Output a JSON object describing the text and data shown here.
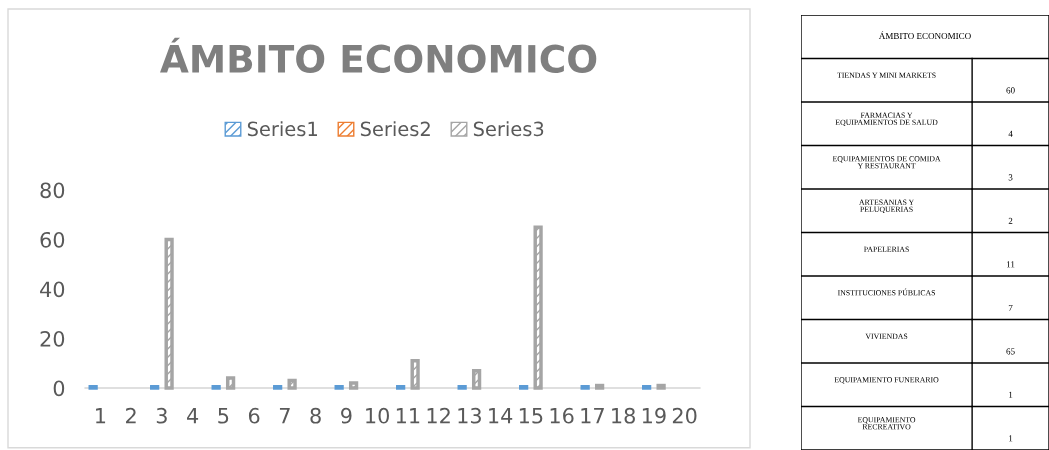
{
  "chart_data": [
    {
      "type": "bar",
      "title": "ÁMBITO ECONOMICO",
      "categories": [
        "1",
        "2",
        "3",
        "4",
        "5",
        "6",
        "7",
        "8",
        "9",
        "10",
        "11",
        "12",
        "13",
        "14",
        "15",
        "16",
        "17",
        "18",
        "19",
        "20"
      ],
      "series": [
        {
          "name": "Series1",
          "color": "#5b9bd5",
          "values": [
            0.5,
            null,
            0.5,
            null,
            0.5,
            null,
            0.5,
            null,
            0.5,
            null,
            0.5,
            null,
            0.5,
            null,
            0.5,
            null,
            0.5,
            null,
            0.5,
            null
          ]
        },
        {
          "name": "Series2",
          "color": "#ed7d31",
          "values": [
            null,
            null,
            null,
            null,
            null,
            null,
            null,
            null,
            null,
            null,
            null,
            null,
            null,
            null,
            null,
            null,
            null,
            null,
            null,
            null
          ]
        },
        {
          "name": "Series3",
          "color": "#a5a5a5",
          "values": [
            null,
            null,
            60,
            null,
            4,
            null,
            3,
            null,
            2,
            null,
            11,
            null,
            7,
            null,
            65,
            null,
            1,
            null,
            1,
            null
          ]
        }
      ],
      "ylim": [
        0,
        80
      ],
      "yticks": [
        0,
        20,
        40,
        60,
        80
      ],
      "grid": false,
      "legend": "top"
    },
    {
      "type": "other",
      "title": "ÁMBITO ECONOMICO",
      "categories": [
        "TIENDAS Y MINI MARKETS",
        "FARMACIAS Y\nEQUIPAMIENTOS DE SALUD",
        "EQUIPAMIENTOS DE COMIDA\nY RESTAURANT",
        "ARTESANIAS Y\nPELUQUERIAS",
        "PAPELERIAS",
        "INSTITUCIONES PÚBLICAS",
        "VIVIENDAS",
        "EQUIPAMIENTO FUNERARIO",
        "EQUIPAMIENTO\nRECREATIVO"
      ],
      "values": [
        60,
        4,
        3,
        2,
        11,
        7,
        65,
        1,
        1
      ],
      "data_labels": true
    }
  ]
}
